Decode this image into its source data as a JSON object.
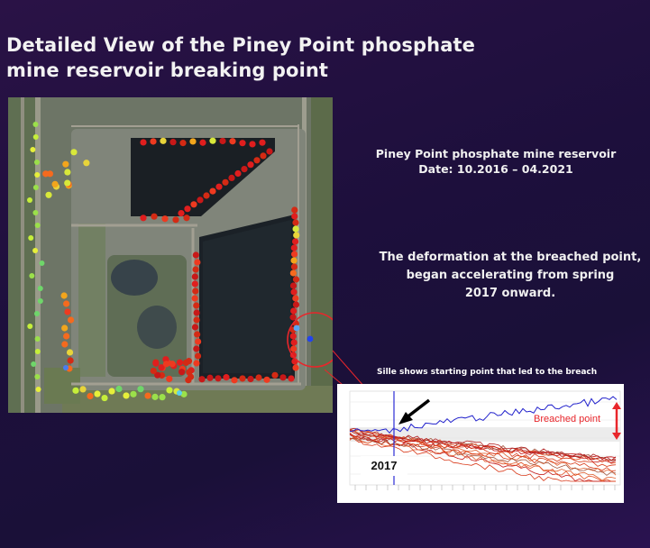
{
  "slide": {
    "title_line1": "Detailed View of the Piney Point phosphate",
    "title_line2": "mine reservoir breaking point",
    "info_line1": "Piney Point phosphate mine reservoir",
    "info_line2": "Date: 10.2016 – 04.2021",
    "deform_line1": "The deformation at the breached point,",
    "deform_line2": "began accelerating from spring",
    "deform_line3": "2017 onward.",
    "chart_caption": "Sille shows starting point that led to the breach",
    "chart_year_label": "2017",
    "chart_breach_label": "Breached point"
  },
  "colors": {
    "background": "#1d0f3c",
    "highlight_circle": "#e8262b",
    "arrow": "#000000",
    "breached_series": "#2222cc",
    "other_series": "#d93a1a"
  }
}
